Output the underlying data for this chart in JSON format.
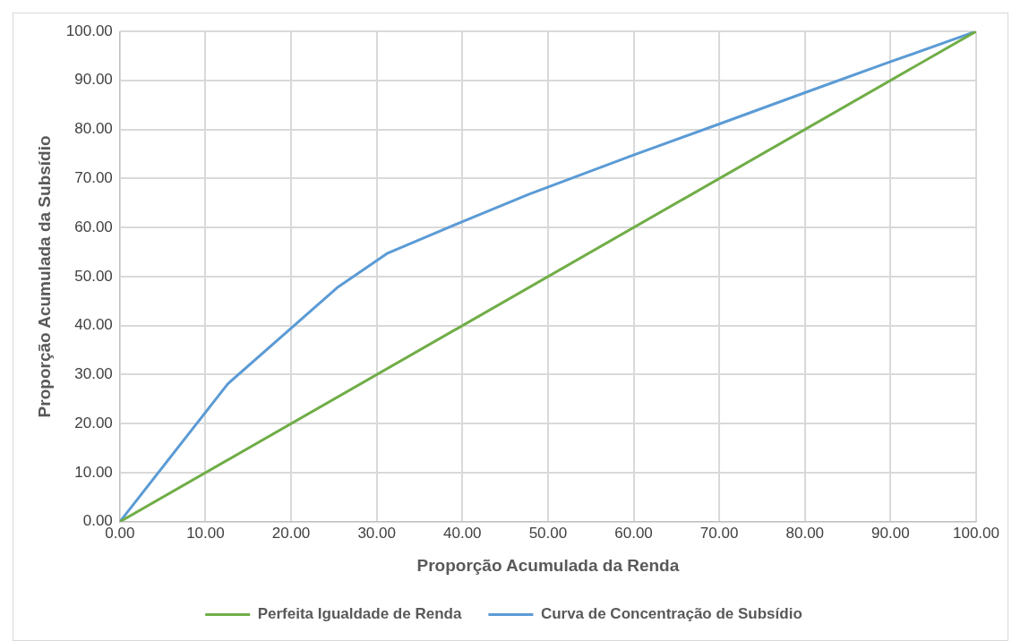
{
  "chart_data": {
    "type": "line",
    "xlabel": "Proporção Acumulada da Renda",
    "ylabel": "Proporção Acumulada da Subsídio",
    "series": [
      {
        "name": "Perfeita Igualdade de Renda",
        "color": "#70ad47",
        "x": [
          0,
          100
        ],
        "values": [
          0,
          100
        ]
      },
      {
        "name": "Curva de Concentração de Subsídio",
        "color": "#5b9bd5",
        "x": [
          0,
          12.6,
          25.5,
          31.2,
          40.0,
          47.8,
          60,
          70,
          80,
          90,
          100
        ],
        "values": [
          0,
          28.1,
          47.9,
          54.7,
          61.2,
          66.8,
          74.8,
          81.1,
          87.5,
          93.8,
          100
        ]
      }
    ],
    "xlim": [
      0,
      100
    ],
    "ylim": [
      0,
      100
    ],
    "xticks": [
      {
        "value": 0,
        "label": "0.00"
      },
      {
        "value": 10,
        "label": "10.00"
      },
      {
        "value": 20,
        "label": "20.00"
      },
      {
        "value": 30,
        "label": "30.00"
      },
      {
        "value": 40,
        "label": "40.00"
      },
      {
        "value": 50,
        "label": "50.00"
      },
      {
        "value": 60,
        "label": "60.00"
      },
      {
        "value": 70,
        "label": "70.00"
      },
      {
        "value": 80,
        "label": "80.00"
      },
      {
        "value": 90,
        "label": "90.00"
      },
      {
        "value": 100,
        "label": "100.00"
      }
    ],
    "yticks": [
      {
        "value": 0,
        "label": "0.00"
      },
      {
        "value": 10,
        "label": "10.00"
      },
      {
        "value": 20,
        "label": "20.00"
      },
      {
        "value": 30,
        "label": "30.00"
      },
      {
        "value": 40,
        "label": "40.00"
      },
      {
        "value": 50,
        "label": "50.00"
      },
      {
        "value": 60,
        "label": "60.00"
      },
      {
        "value": 70,
        "label": "70.00"
      },
      {
        "value": 80,
        "label": "80.00"
      },
      {
        "value": 90,
        "label": "90.00"
      },
      {
        "value": 100,
        "label": "100.00"
      }
    ],
    "grid": true,
    "legend": "bottom",
    "marker": "none",
    "line_style": "solid"
  }
}
